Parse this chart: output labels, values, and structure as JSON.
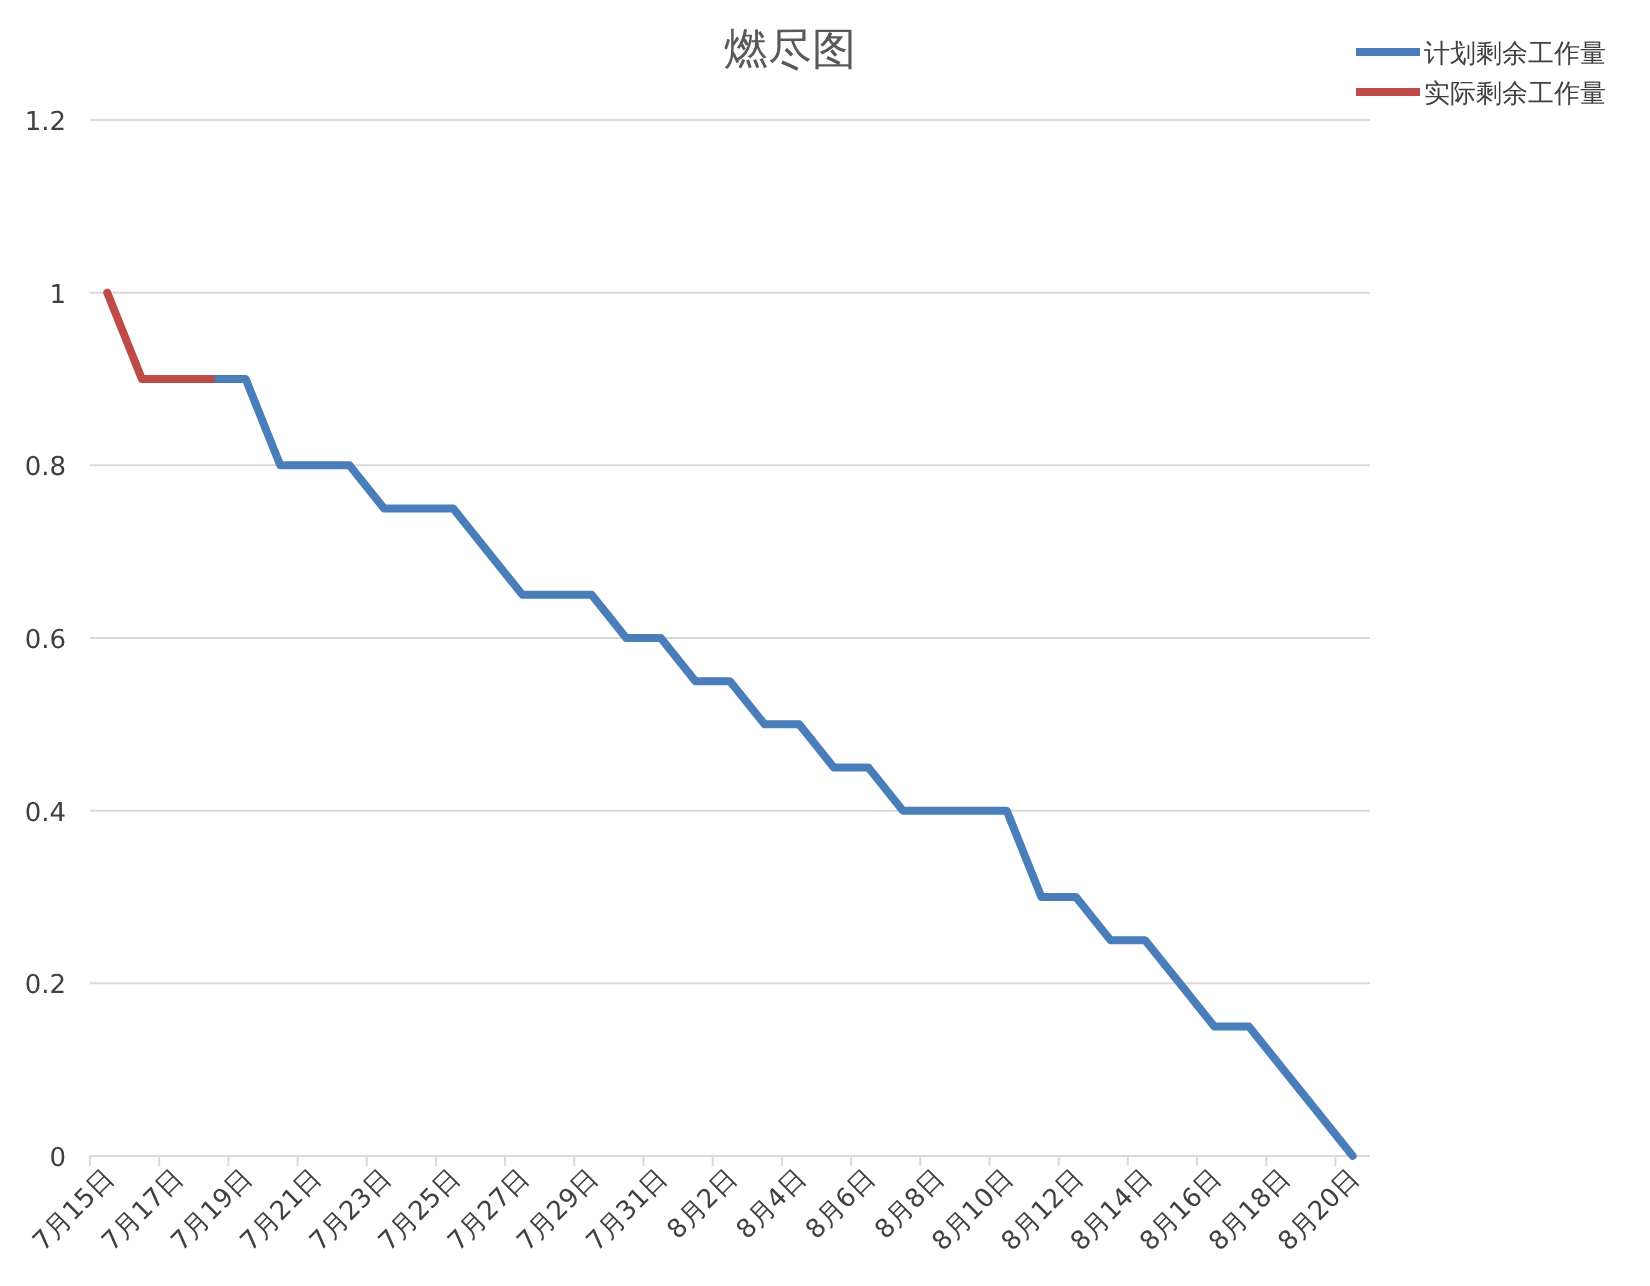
{
  "chart_data": {
    "type": "line",
    "title": "燃尽图",
    "categories": [
      "7月15日",
      null,
      "7月17日",
      null,
      "7月19日",
      null,
      "7月21日",
      null,
      "7月23日",
      null,
      "7月25日",
      null,
      "7月27日",
      null,
      "7月29日",
      null,
      "7月31日",
      null,
      "8月2日",
      null,
      "8月4日",
      null,
      "8月6日",
      null,
      "8月8日",
      null,
      "8月10日",
      null,
      "8月12日",
      null,
      "8月14日",
      null,
      "8月16日",
      null,
      "8月18日",
      null,
      "8月20日"
    ],
    "series": [
      {
        "name": "计划剩余工作量",
        "color": "#4a7ebb",
        "values": [
          null,
          null,
          null,
          0.9,
          0.9,
          0.8,
          0.8,
          0.8,
          0.75,
          0.75,
          0.75,
          0.7,
          0.65,
          0.65,
          0.65,
          0.6,
          0.6,
          0.55,
          0.55,
          0.5,
          0.5,
          0.45,
          0.45,
          0.4,
          0.4,
          0.4,
          0.4,
          0.3,
          0.3,
          0.25,
          0.25,
          0.2,
          0.15,
          0.15,
          0.1,
          0.05,
          0
        ]
      },
      {
        "name": "实际剩余工作量",
        "color": "#be4b48",
        "values": [
          1,
          0.9,
          0.9,
          0.9,
          null,
          null,
          null,
          null,
          null,
          null,
          null,
          null,
          null,
          null,
          null,
          null,
          null,
          null,
          null,
          null,
          null,
          null,
          null,
          null,
          null,
          null,
          null,
          null,
          null,
          null,
          null,
          null,
          null,
          null,
          null,
          null,
          null
        ]
      }
    ],
    "ylim": [
      0,
      1.2
    ],
    "yticks": [
      0,
      0.2,
      0.4,
      0.6,
      0.8,
      1,
      1.2
    ],
    "grid": "y",
    "legend": "top right",
    "marker": "none",
    "line_style": "solid"
  }
}
